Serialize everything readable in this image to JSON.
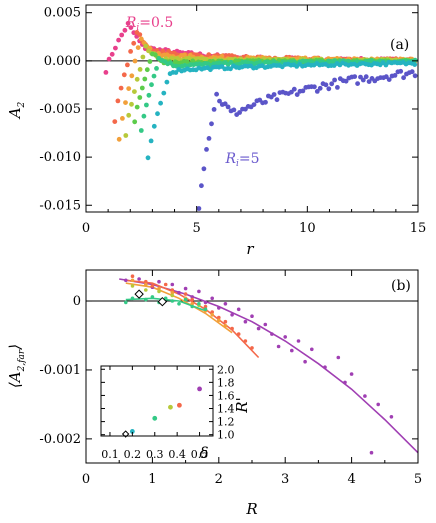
{
  "chart_data": [
    {
      "type": "scatter",
      "panel_label": "(a)",
      "xlabel": "r",
      "ylabel": "A",
      "ylabel_sub": "2",
      "xlim": [
        0,
        15
      ],
      "ylim": [
        -0.0157,
        0.0058
      ],
      "xticks": [
        0,
        5,
        10,
        15
      ],
      "yticks": [
        0.005,
        0.0,
        -0.005,
        -0.01,
        -0.015
      ],
      "ytick_labels": [
        "0.005",
        "0.000",
        "-0.005",
        "-0.010",
        "-0.015"
      ],
      "annotations": [
        {
          "prefix": "R",
          "sub": "i",
          "suffix": "=0.5",
          "color": "#e8408c",
          "x": 1.8,
          "y": 0.0035
        },
        {
          "prefix": "R",
          "sub": "i",
          "suffix": "=5",
          "color": "#6a5acd",
          "x": 6.3,
          "y": -0.0106
        }
      ],
      "series": [
        {
          "Ri": 0.5,
          "color": "#e8408c",
          "start": [
            0.9,
            -0.001
          ],
          "peak": [
            1.9,
            0.0038
          ],
          "tail_from": 2.6,
          "tail_offset": 0.0014,
          "tail_decay": 3.0,
          "noise": 0.0004
        },
        {
          "Ri": 1.0,
          "color": "#f4684a",
          "start": [
            1.3,
            -0.0062
          ],
          "peak": [
            2.3,
            0.003
          ],
          "tail_from": 2.9,
          "tail_offset": 0.001,
          "tail_decay": 3.5,
          "noise": 0.0004
        },
        {
          "Ri": 1.5,
          "color": "#f2a03b",
          "start": [
            1.5,
            -0.008
          ],
          "peak": [
            2.5,
            0.0024
          ],
          "tail_from": 3.1,
          "tail_offset": 0.0006,
          "tail_decay": 4.0,
          "noise": 0.0004
        },
        {
          "Ri": 2.0,
          "color": "#b7c93a",
          "start": [
            1.8,
            -0.0077
          ],
          "peak": [
            2.7,
            0.0014
          ],
          "tail_from": 3.3,
          "tail_offset": 0.0002,
          "tail_decay": 4.5,
          "noise": 0.0003
        },
        {
          "Ri": 2.5,
          "color": "#5ccc4a",
          "start": [
            2.2,
            -0.0063
          ],
          "peak": [
            3.0,
            0.0008
          ],
          "tail_from": 3.6,
          "tail_offset": -0.0002,
          "tail_decay": 5.0,
          "noise": 0.0003
        },
        {
          "Ri": 3.0,
          "color": "#34c986",
          "start": [
            2.5,
            -0.0072
          ],
          "peak": [
            3.3,
            0.0002
          ],
          "tail_from": 4.0,
          "tail_offset": -0.0005,
          "tail_decay": 5.0,
          "noise": 0.0003
        },
        {
          "Ri": 4.0,
          "color": "#25b3c1",
          "start": [
            2.8,
            -0.0102
          ],
          "peak": [
            3.8,
            -0.0012
          ],
          "tail_from": 4.4,
          "tail_offset": -0.0009,
          "tail_decay": 8.0,
          "noise": 0.0003
        },
        {
          "Ri": 5.0,
          "color": "#5b55c8",
          "start": [
            5.1,
            -0.015
          ],
          "peak": [
            5.9,
            -0.0036
          ],
          "tail_from": 6.6,
          "tail_offset": -0.0055,
          "tail_decay": 5.5,
          "noise": 0.0009
        }
      ]
    },
    {
      "type": "scatter",
      "panel_label": "(b)",
      "xlabel": "R",
      "ylabel": "⟨A",
      "ylabel_sub": "2,far",
      "ylabel_close": "⟩",
      "xlim": [
        0,
        5
      ],
      "ylim": [
        -0.00235,
        0.00045
      ],
      "xticks": [
        0,
        1,
        2,
        3,
        4,
        5
      ],
      "yticks": [
        0,
        -0.001,
        -0.002
      ],
      "ytick_labels": [
        "0",
        "-0.001",
        "-0.002"
      ],
      "fit_curves": [
        {
          "color": "#a03fb3",
          "x": [
            0.5,
            1.0,
            1.5,
            2.0,
            2.5,
            3.0,
            3.5,
            4.0,
            4.5,
            5.0
          ],
          "y": [
            0.00032,
            0.00024,
            0.0001,
            -8e-05,
            -0.0003,
            -0.00058,
            -0.00091,
            -0.00128,
            -0.00172,
            -0.0022
          ]
        },
        {
          "color": "#f4684a",
          "x": [
            0.6,
            1.0,
            1.4,
            1.8,
            2.2,
            2.6
          ],
          "y": [
            0.0003,
            0.00026,
            0.0001,
            -0.00012,
            -0.00042,
            -0.00082
          ]
        },
        {
          "color": "#f2a03b",
          "x": [
            0.6,
            1.0,
            1.4,
            1.8,
            2.2
          ],
          "y": [
            0.00026,
            0.0002,
            4e-05,
            -0.00018,
            -0.00046
          ]
        },
        {
          "color": "#34c986",
          "x": [
            0.6,
            1.0,
            1.4,
            1.8
          ],
          "y": [
            2e-05,
            4e-05,
            0.0,
            -0.00014
          ]
        }
      ],
      "scatter_groups": [
        {
          "color": "#a03fb3",
          "points": [
            [
              0.6,
              0.0003
            ],
            [
              0.8,
              0.00032
            ],
            [
              1.0,
              0.0002
            ],
            [
              1.1,
              0.00028
            ],
            [
              1.3,
              0.00024
            ],
            [
              1.4,
              0.00012
            ],
            [
              1.5,
              0.00018
            ],
            [
              1.6,
              6e-05
            ],
            [
              1.7,
              0.00014
            ],
            [
              1.8,
              -2e-05
            ],
            [
              1.9,
              4e-05
            ],
            [
              2.0,
              -0.0001
            ],
            [
              2.1,
              -4e-05
            ],
            [
              2.2,
              -0.0002
            ],
            [
              2.3,
              -0.00012
            ],
            [
              2.4,
              -0.0003
            ],
            [
              2.5,
              -0.00022
            ],
            [
              2.6,
              -0.0004
            ],
            [
              2.7,
              -0.00034
            ],
            [
              2.8,
              -0.00048
            ],
            [
              2.9,
              -0.00066
            ],
            [
              3.0,
              -0.00052
            ],
            [
              3.1,
              -0.00072
            ],
            [
              3.2,
              -0.00058
            ],
            [
              3.3,
              -0.00088
            ],
            [
              3.4,
              -0.0007
            ],
            [
              3.6,
              -0.00096
            ],
            [
              3.8,
              -0.00082
            ],
            [
              3.9,
              -0.00118
            ],
            [
              4.0,
              -0.00106
            ],
            [
              4.2,
              -0.00138
            ],
            [
              4.3,
              -0.0022
            ],
            [
              4.4,
              -0.0015
            ],
            [
              4.6,
              -0.00168
            ]
          ]
        },
        {
          "color": "#f4684a",
          "points": [
            [
              0.7,
              0.00036
            ],
            [
              0.9,
              0.00028
            ],
            [
              1.0,
              0.00022
            ],
            [
              1.2,
              0.00024
            ],
            [
              1.3,
              0.00016
            ],
            [
              1.5,
              0.0001
            ],
            [
              1.6,
              2e-05
            ],
            [
              1.8,
              -8e-05
            ],
            [
              1.9,
              -0.00016
            ],
            [
              2.0,
              -0.00024
            ],
            [
              2.1,
              -0.0003
            ],
            [
              2.2,
              -0.0004
            ],
            [
              2.3,
              -0.00048
            ],
            [
              2.4,
              -0.00058
            ],
            [
              2.5,
              -0.00068
            ]
          ]
        },
        {
          "color": "#f2a03b",
          "points": [
            [
              0.7,
              0.0003
            ],
            [
              0.9,
              0.00024
            ],
            [
              1.1,
              0.00018
            ],
            [
              1.3,
              0.00012
            ],
            [
              1.5,
              4e-05
            ],
            [
              1.6,
              -4e-05
            ],
            [
              1.8,
              -0.00014
            ],
            [
              1.9,
              -0.0002
            ],
            [
              2.0,
              -0.00028
            ],
            [
              2.1,
              -0.00036
            ]
          ]
        },
        {
          "color": "#b7c93a",
          "points": [
            [
              0.7,
              0.00022
            ],
            [
              0.9,
              0.00016
            ],
            [
              1.1,
              0.00014
            ],
            [
              1.3,
              8e-05
            ],
            [
              1.5,
              2e-05
            ],
            [
              1.7,
              -6e-05
            ]
          ]
        },
        {
          "color": "#34c986",
          "points": [
            [
              0.6,
              -2e-05
            ],
            [
              0.7,
              4e-05
            ],
            [
              0.9,
              2e-05
            ],
            [
              1.0,
              6e-05
            ],
            [
              1.1,
              -2e-05
            ],
            [
              1.2,
              4e-05
            ],
            [
              1.3,
              0.0
            ],
            [
              1.4,
              -4e-05
            ],
            [
              1.5,
              2e-05
            ],
            [
              1.6,
              -8e-05
            ],
            [
              1.7,
              -4e-05
            ],
            [
              1.8,
              -0.00012
            ]
          ]
        }
      ],
      "diamonds": [
        [
          0.8,
          0.0001
        ],
        [
          1.15,
          -1e-05
        ]
      ],
      "inset": {
        "xlabel": "δ",
        "ylabel": "R'",
        "xlim": [
          0.06,
          0.56
        ],
        "ylim": [
          0.98,
          2.05
        ],
        "xticks": [
          0.1,
          0.2,
          0.3,
          0.4,
          0.5
        ],
        "yticks": [
          1.0,
          1.2,
          1.4,
          1.6,
          1.8,
          2.0
        ],
        "points": [
          {
            "x": 0.17,
            "y": 1.01,
            "color": "#000000",
            "marker": "diamond"
          },
          {
            "x": 0.2,
            "y": 1.05,
            "color": "#25b3c1",
            "marker": "dot"
          },
          {
            "x": 0.3,
            "y": 1.25,
            "color": "#34c986",
            "marker": "dot"
          },
          {
            "x": 0.37,
            "y": 1.42,
            "color": "#b7c93a",
            "marker": "dot"
          },
          {
            "x": 0.41,
            "y": 1.45,
            "color": "#f4684a",
            "marker": "dot"
          },
          {
            "x": 0.5,
            "y": 1.7,
            "color": "#a03fb3",
            "marker": "dot"
          }
        ]
      }
    }
  ]
}
